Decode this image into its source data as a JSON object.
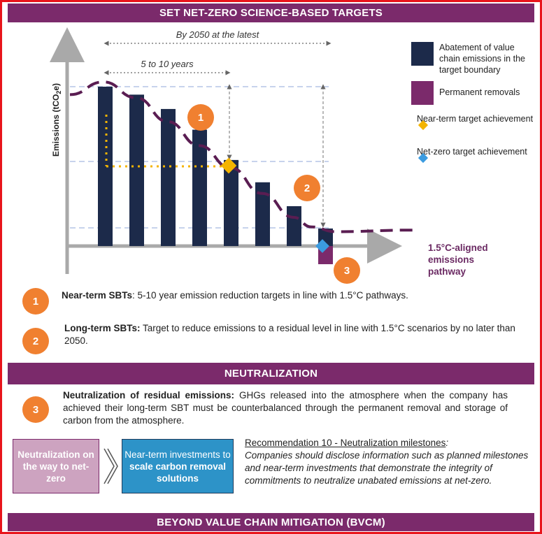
{
  "header": {
    "title": "SET NET-ZERO SCIENCE-BASED TARGETS"
  },
  "chart_data": {
    "type": "bar",
    "ylabel": "Emissions (tCO2e)",
    "bars": [
      100,
      95,
      86,
      73,
      54,
      40,
      25,
      11
    ],
    "removal_bar": -12,
    "pathway": [
      95,
      103,
      93,
      78,
      63,
      49,
      33,
      18,
      12,
      9,
      10
    ],
    "annotations": {
      "span_2050": "By 2050 at the latest",
      "span_5_10": "5 to 10 years"
    },
    "colors": {
      "abatement": "#1c2a4a",
      "removal": "#7b2a6b",
      "near_term": "#f4b400",
      "net_zero": "#3b9be0",
      "pathway": "#5a1d52",
      "badge": "#f08030"
    }
  },
  "legend": {
    "abatement": "Abatement of value chain emissions in the target boundary",
    "removals": "Permanent removals",
    "near_term": "Near-term target achievement",
    "net_zero": "Net-zero target achievement"
  },
  "pathway_label": "1.5°C-aligned emissions pathway",
  "badges": [
    "1",
    "2",
    "3"
  ],
  "notes": {
    "near_term_title": "Near-term SBTs",
    "near_term_text": ": 5-10 year emission reduction targets in line with 1.5°C pathways.",
    "long_term_title": "Long-term SBTs:",
    "long_term_text": " Target to reduce emissions to a residual level in line with 1.5°C scenarios by no later than 2050."
  },
  "neutralization": {
    "band": "NEUTRALIZATION",
    "title": "Neutralization of residual emissions:",
    "text": " GHGs released into the atmosphere when the company has achieved their long-term SBT must be counterbalanced through the permanent removal and storage of carbon from the atmosphere.",
    "box_pink": "Neutralization on the way to net-zero",
    "box_blue_line1": "Near-term investments to",
    "box_blue_line2": "scale carbon removal solutions",
    "rec_title": "Recommendation 10 - Neutralization milestones",
    "rec_colon": ":",
    "rec_body": "Companies should disclose information such as planned milestones and near-term investments that demonstrate the integrity of commitments to neutralize unabated emissions at net-zero."
  },
  "footer": {
    "band": "BEYOND VALUE CHAIN MITIGATION (BVCM)"
  }
}
